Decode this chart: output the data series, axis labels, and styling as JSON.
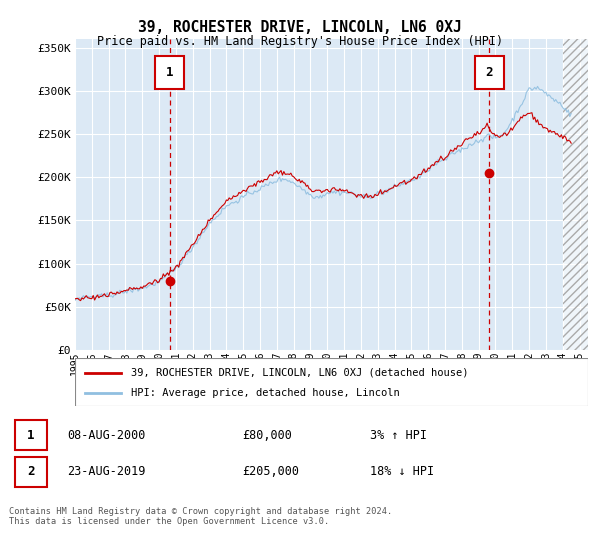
{
  "title": "39, ROCHESTER DRIVE, LINCOLN, LN6 0XJ",
  "subtitle": "Price paid vs. HM Land Registry's House Price Index (HPI)",
  "ylim": [
    0,
    360000
  ],
  "yticks": [
    0,
    50000,
    100000,
    150000,
    200000,
    250000,
    300000,
    350000
  ],
  "ytick_labels": [
    "£0",
    "£50K",
    "£100K",
    "£150K",
    "£200K",
    "£250K",
    "£300K",
    "£350K"
  ],
  "bg_color": "#dce9f5",
  "hpi_color": "#90bfe0",
  "price_color": "#cc0000",
  "marker1_year": 2000.62,
  "marker1_value": 80000,
  "marker2_year": 2019.64,
  "marker2_value": 205000,
  "legend_price_label": "39, ROCHESTER DRIVE, LINCOLN, LN6 0XJ (detached house)",
  "legend_hpi_label": "HPI: Average price, detached house, Lincoln",
  "annotation1_date": "08-AUG-2000",
  "annotation1_price": "£80,000",
  "annotation1_hpi": "3% ↑ HPI",
  "annotation2_date": "23-AUG-2019",
  "annotation2_price": "£205,000",
  "annotation2_hpi": "18% ↓ HPI",
  "footer": "Contains HM Land Registry data © Crown copyright and database right 2024.\nThis data is licensed under the Open Government Licence v3.0.",
  "xmin": 1995,
  "xmax": 2025.5,
  "hatch_start": 2024.0
}
